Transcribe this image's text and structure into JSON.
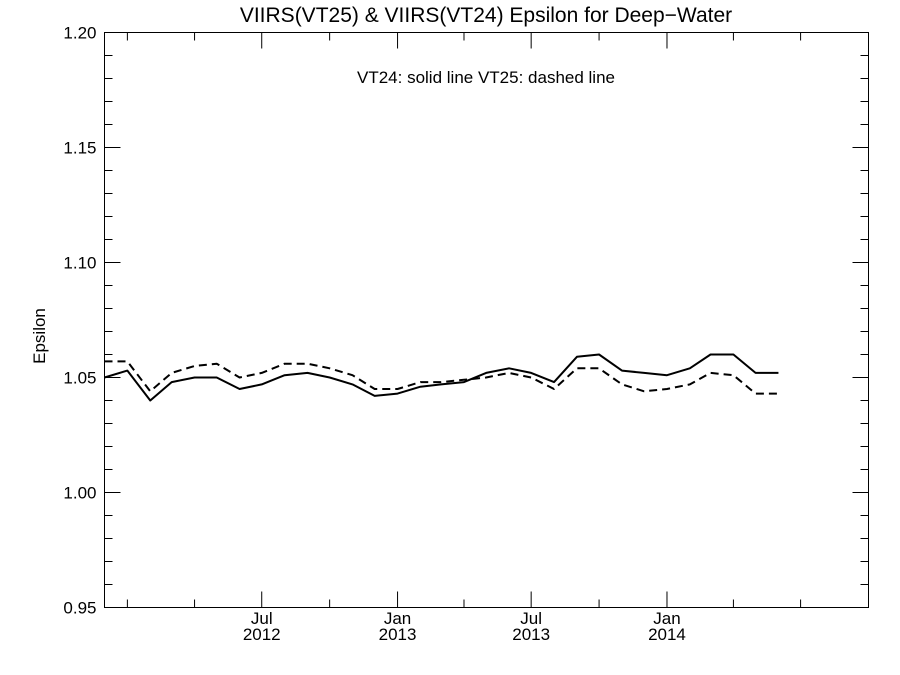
{
  "chart_data": {
    "type": "line",
    "title": "VIIRS(VT25) & VIIRS(VT24)  Epsilon for Deep−Water",
    "ylabel": "Epsilon",
    "xlabel": "",
    "annotation": "VT24: solid line   VT25: dashed line",
    "ylim": [
      0.95,
      1.2
    ],
    "xlim": [
      "2011-12-01",
      "2014-10-01"
    ],
    "y_ticks": [
      0.95,
      1.0,
      1.05,
      1.1,
      1.15,
      1.2
    ],
    "y_tick_labels": [
      "0.95",
      "1.00",
      "1.05",
      "1.10",
      "1.15",
      "1.20"
    ],
    "x_ticks": [
      {
        "date": "2012-07-01",
        "month": "Jul",
        "year": "2012"
      },
      {
        "date": "2013-01-01",
        "month": "Jan",
        "year": "2013"
      },
      {
        "date": "2013-07-01",
        "month": "Jul",
        "year": "2013"
      },
      {
        "date": "2014-01-01",
        "month": "Jan",
        "year": "2014"
      }
    ],
    "minor_x_ticks": [
      "2012-01-01",
      "2012-04-01",
      "2012-10-01",
      "2013-04-01",
      "2013-10-01",
      "2014-04-01",
      "2014-07-01"
    ],
    "x": [
      "2011-12-01",
      "2012-01-01",
      "2012-02-01",
      "2012-03-01",
      "2012-04-01",
      "2012-05-01",
      "2012-06-01",
      "2012-07-01",
      "2012-08-01",
      "2012-09-01",
      "2012-10-01",
      "2012-11-01",
      "2012-12-01",
      "2013-01-01",
      "2013-02-01",
      "2013-03-01",
      "2013-04-01",
      "2013-05-01",
      "2013-06-01",
      "2013-07-01",
      "2013-08-01",
      "2013-09-01",
      "2013-10-01",
      "2013-11-01",
      "2013-12-01",
      "2014-01-01",
      "2014-02-01",
      "2014-03-01",
      "2014-04-01",
      "2014-05-01",
      "2014-06-01"
    ],
    "series": [
      {
        "name": "VT24",
        "style": "solid",
        "color": "#000000",
        "values": [
          1.05,
          1.053,
          1.04,
          1.048,
          1.05,
          1.05,
          1.045,
          1.047,
          1.051,
          1.052,
          1.05,
          1.047,
          1.042,
          1.043,
          1.046,
          1.047,
          1.048,
          1.052,
          1.054,
          1.052,
          1.048,
          1.059,
          1.06,
          1.053,
          1.052,
          1.051,
          1.054,
          1.06,
          1.06,
          1.052,
          1.052
        ]
      },
      {
        "name": "VT25",
        "style": "dashed",
        "color": "#000000",
        "values": [
          1.057,
          1.057,
          1.044,
          1.052,
          1.055,
          1.056,
          1.05,
          1.052,
          1.056,
          1.056,
          1.054,
          1.051,
          1.045,
          1.045,
          1.048,
          1.048,
          1.049,
          1.05,
          1.052,
          1.05,
          1.045,
          1.054,
          1.054,
          1.047,
          1.044,
          1.045,
          1.047,
          1.052,
          1.051,
          1.043,
          1.043
        ]
      }
    ],
    "grid": false,
    "legend": "none"
  }
}
